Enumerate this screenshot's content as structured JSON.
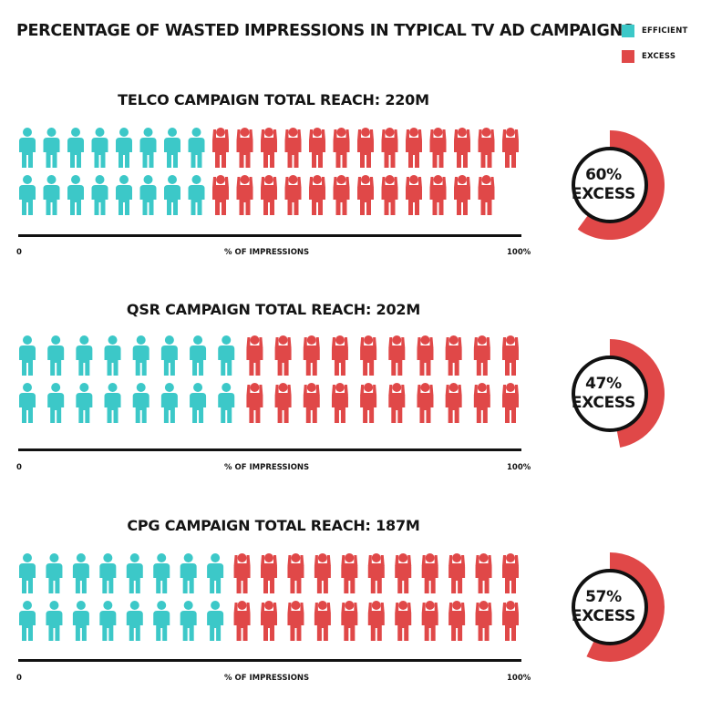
{
  "title": "PERCENTAGE OF WASTED IMPRESSIONS IN TYPICAL TV AD CAMPAIGNS",
  "legend": [
    {
      "label": "EFFICIENT",
      "color": "#3cc8c8"
    },
    {
      "label": "EXCESS",
      "color": "#e04848"
    }
  ],
  "colors": {
    "efficient": "#3cc8c8",
    "excess": "#e04848"
  },
  "axis": {
    "label": "% OF IMPRESSIONS",
    "tick_min": "0",
    "tick_max": "100%"
  },
  "chart_data": [
    {
      "type": "pictograph",
      "title": "TELCO CAMPAIGN TOTAL REACH: 220M",
      "efficient_icons": [
        8,
        8
      ],
      "excess_icons": [
        13,
        12
      ],
      "excess_percent": 60,
      "excess_label": "60%",
      "excess_word": "EXCESS"
    },
    {
      "type": "pictograph",
      "title": "QSR CAMPAIGN TOTAL REACH: 202M",
      "efficient_icons": [
        8,
        8
      ],
      "excess_icons": [
        10,
        10
      ],
      "excess_percent": 47,
      "excess_label": "47%",
      "excess_word": "EXCESS"
    },
    {
      "type": "pictograph",
      "title": "CPG CAMPAIGN TOTAL REACH: 187M",
      "efficient_icons": [
        8,
        8
      ],
      "excess_icons": [
        11,
        11
      ],
      "excess_percent": 57,
      "excess_label": "57%",
      "excess_word": "EXCESS"
    }
  ]
}
